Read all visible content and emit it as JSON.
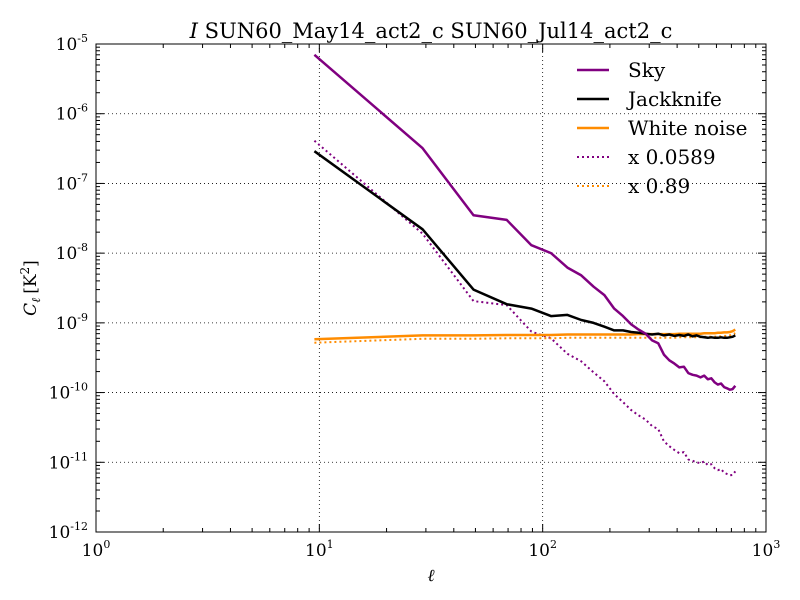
{
  "chart_data": {
    "type": "line",
    "title": "I SUN60_May14_act2_c SUN60_Jul14_act2_c",
    "title_italic_part": "I",
    "title_rest": " SUN60_May14_act2_c SUN60_Jul14_act2_c",
    "xlabel": "ℓ",
    "ylabel": "C_ℓ [K²]",
    "ylabel_main": "C",
    "ylabel_sub": "ℓ",
    "ylabel_unit": "[K",
    "ylabel_unit_exp": "2",
    "ylabel_unit_close": "]",
    "xscale": "log",
    "yscale": "log",
    "xlim": [
      1,
      1000
    ],
    "ylim": [
      1e-12,
      1e-05
    ],
    "grid": true,
    "legend_position": "top-right",
    "x_ticks": [
      {
        "value": 1,
        "base": "10",
        "exp": "0"
      },
      {
        "value": 10,
        "base": "10",
        "exp": "1"
      },
      {
        "value": 100,
        "base": "10",
        "exp": "2"
      },
      {
        "value": 1000,
        "base": "10",
        "exp": "3"
      }
    ],
    "y_ticks": [
      {
        "value": 1e-12,
        "base": "10",
        "exp": "-12"
      },
      {
        "value": 1e-11,
        "base": "10",
        "exp": "-11"
      },
      {
        "value": 1e-10,
        "base": "10",
        "exp": "-10"
      },
      {
        "value": 1e-09,
        "base": "10",
        "exp": "-9"
      },
      {
        "value": 1e-08,
        "base": "10",
        "exp": "-8"
      },
      {
        "value": 1e-07,
        "base": "10",
        "exp": "-7"
      },
      {
        "value": 1e-06,
        "base": "10",
        "exp": "-6"
      },
      {
        "value": 1e-05,
        "base": "10",
        "exp": "-5"
      }
    ],
    "series": [
      {
        "name": "Sky",
        "color": "#800080",
        "style": "solid",
        "points": [
          [
            9.5,
            7e-06
          ],
          [
            29,
            3.2e-07
          ],
          [
            49,
            3.5e-08
          ],
          [
            69,
            3e-08
          ],
          [
            89,
            1.3e-08
          ],
          [
            109,
            1e-08
          ],
          [
            129,
            6.2e-09
          ],
          [
            149,
            4.8e-09
          ],
          [
            169,
            3.3e-09
          ],
          [
            189,
            2.5e-09
          ],
          [
            209,
            1.6e-09
          ],
          [
            229,
            1.25e-09
          ],
          [
            249,
            9.5e-10
          ],
          [
            269,
            8e-10
          ],
          [
            289,
            7e-10
          ],
          [
            309,
            5.6e-10
          ],
          [
            329,
            5.1e-10
          ],
          [
            349,
            3.5e-10
          ],
          [
            369,
            2.9e-10
          ],
          [
            389,
            2.6e-10
          ],
          [
            409,
            2.3e-10
          ],
          [
            429,
            2.35e-10
          ],
          [
            449,
            1.9e-10
          ],
          [
            469,
            1.8e-10
          ],
          [
            489,
            1.75e-10
          ],
          [
            509,
            1.65e-10
          ],
          [
            529,
            1.75e-10
          ],
          [
            549,
            1.55e-10
          ],
          [
            569,
            1.6e-10
          ],
          [
            589,
            1.4e-10
          ],
          [
            609,
            1.3e-10
          ],
          [
            629,
            1.35e-10
          ],
          [
            649,
            1.2e-10
          ],
          [
            669,
            1.15e-10
          ],
          [
            689,
            1.1e-10
          ],
          [
            709,
            1.12e-10
          ],
          [
            729,
            1.25e-10
          ]
        ]
      },
      {
        "name": "Jackknife",
        "color": "#000000",
        "style": "solid",
        "points": [
          [
            9.5,
            2.9e-07
          ],
          [
            29,
            2.2e-08
          ],
          [
            49,
            3e-09
          ],
          [
            69,
            1.85e-09
          ],
          [
            89,
            1.6e-09
          ],
          [
            109,
            1.25e-09
          ],
          [
            129,
            1.3e-09
          ],
          [
            149,
            1.1e-09
          ],
          [
            169,
            1e-09
          ],
          [
            189,
            8.8e-10
          ],
          [
            209,
            7.8e-10
          ],
          [
            229,
            7.8e-10
          ],
          [
            249,
            7.4e-10
          ],
          [
            269,
            7.2e-10
          ],
          [
            289,
            7e-10
          ],
          [
            309,
            6.8e-10
          ],
          [
            329,
            7e-10
          ],
          [
            349,
            6.6e-10
          ],
          [
            369,
            6.8e-10
          ],
          [
            389,
            6.5e-10
          ],
          [
            409,
            6.7e-10
          ],
          [
            429,
            6.5e-10
          ],
          [
            449,
            6.8e-10
          ],
          [
            469,
            6.4e-10
          ],
          [
            489,
            6.6e-10
          ],
          [
            509,
            6.3e-10
          ],
          [
            529,
            6.2e-10
          ],
          [
            549,
            6.1e-10
          ],
          [
            569,
            6.2e-10
          ],
          [
            589,
            6.1e-10
          ],
          [
            609,
            6.1e-10
          ],
          [
            629,
            6.2e-10
          ],
          [
            649,
            6.1e-10
          ],
          [
            669,
            6.1e-10
          ],
          [
            689,
            6.2e-10
          ],
          [
            709,
            6.3e-10
          ],
          [
            729,
            6.6e-10
          ]
        ]
      },
      {
        "name": "White noise",
        "color": "#FF8C00",
        "style": "solid",
        "points": [
          [
            9.5,
            5.8e-10
          ],
          [
            29,
            6.6e-10
          ],
          [
            49,
            6.6e-10
          ],
          [
            69,
            6.7e-10
          ],
          [
            89,
            6.7e-10
          ],
          [
            109,
            6.7e-10
          ],
          [
            129,
            6.8e-10
          ],
          [
            149,
            6.8e-10
          ],
          [
            169,
            6.8e-10
          ],
          [
            189,
            6.8e-10
          ],
          [
            209,
            6.8e-10
          ],
          [
            229,
            6.8e-10
          ],
          [
            249,
            6.8e-10
          ],
          [
            269,
            6.9e-10
          ],
          [
            289,
            6.9e-10
          ],
          [
            309,
            6.9e-10
          ],
          [
            329,
            6.9e-10
          ],
          [
            349,
            6.9e-10
          ],
          [
            369,
            6.9e-10
          ],
          [
            389,
            6.9e-10
          ],
          [
            409,
            7e-10
          ],
          [
            429,
            7e-10
          ],
          [
            449,
            7e-10
          ],
          [
            469,
            7e-10
          ],
          [
            489,
            7e-10
          ],
          [
            509,
            7e-10
          ],
          [
            529,
            7.1e-10
          ],
          [
            549,
            7.1e-10
          ],
          [
            569,
            7.1e-10
          ],
          [
            589,
            7.1e-10
          ],
          [
            609,
            7.2e-10
          ],
          [
            629,
            7.2e-10
          ],
          [
            649,
            7.3e-10
          ],
          [
            669,
            7.3e-10
          ],
          [
            689,
            7.4e-10
          ],
          [
            709,
            7.6e-10
          ],
          [
            729,
            8e-10
          ]
        ]
      },
      {
        "name": "x 0.0589",
        "color": "#800080",
        "style": "dotted",
        "points": [
          [
            9.5,
            4.1e-07
          ],
          [
            29,
            1.9e-08
          ],
          [
            49,
            2.05e-09
          ],
          [
            69,
            1.8e-09
          ],
          [
            89,
            7.5e-10
          ],
          [
            109,
            6e-10
          ],
          [
            129,
            3.6e-10
          ],
          [
            149,
            2.8e-10
          ],
          [
            169,
            1.95e-10
          ],
          [
            189,
            1.45e-10
          ],
          [
            209,
            9.5e-11
          ],
          [
            229,
            7.3e-11
          ],
          [
            249,
            5.6e-11
          ],
          [
            269,
            4.7e-11
          ],
          [
            289,
            4.1e-11
          ],
          [
            309,
            3.3e-11
          ],
          [
            329,
            3e-11
          ],
          [
            349,
            2e-11
          ],
          [
            369,
            1.7e-11
          ],
          [
            389,
            1.5e-11
          ],
          [
            409,
            1.35e-11
          ],
          [
            429,
            1.4e-11
          ],
          [
            449,
            1.1e-11
          ],
          [
            469,
            1.05e-11
          ],
          [
            489,
            1e-11
          ],
          [
            509,
            9.7e-12
          ],
          [
            529,
            1.03e-11
          ],
          [
            549,
            9.1e-12
          ],
          [
            569,
            9.4e-12
          ],
          [
            589,
            8.2e-12
          ],
          [
            609,
            7.7e-12
          ],
          [
            629,
            8e-12
          ],
          [
            649,
            7.1e-12
          ],
          [
            669,
            6.8e-12
          ],
          [
            689,
            6.5e-12
          ],
          [
            709,
            6.6e-12
          ],
          [
            729,
            7.4e-12
          ]
        ]
      },
      {
        "name": "x 0.89",
        "color": "#FF8C00",
        "style": "dotted",
        "points": [
          [
            9.5,
            5.2e-10
          ],
          [
            29,
            5.9e-10
          ],
          [
            49,
            5.9e-10
          ],
          [
            69,
            6e-10
          ],
          [
            89,
            6e-10
          ],
          [
            109,
            6e-10
          ],
          [
            129,
            6.1e-10
          ],
          [
            149,
            6.1e-10
          ],
          [
            169,
            6.1e-10
          ],
          [
            189,
            6.1e-10
          ],
          [
            209,
            6.1e-10
          ],
          [
            229,
            6.1e-10
          ],
          [
            249,
            6.1e-10
          ],
          [
            269,
            6.1e-10
          ],
          [
            289,
            6.1e-10
          ],
          [
            309,
            6.1e-10
          ],
          [
            329,
            6.1e-10
          ],
          [
            349,
            6.1e-10
          ],
          [
            369,
            6.1e-10
          ],
          [
            389,
            6.1e-10
          ],
          [
            409,
            6.2e-10
          ],
          [
            429,
            6.2e-10
          ],
          [
            449,
            6.2e-10
          ],
          [
            469,
            6.2e-10
          ],
          [
            489,
            6.2e-10
          ],
          [
            509,
            6.2e-10
          ],
          [
            529,
            6.3e-10
          ],
          [
            549,
            6.3e-10
          ],
          [
            569,
            6.3e-10
          ],
          [
            589,
            6.3e-10
          ],
          [
            609,
            6.4e-10
          ],
          [
            629,
            6.4e-10
          ],
          [
            649,
            6.5e-10
          ],
          [
            669,
            6.5e-10
          ],
          [
            689,
            6.6e-10
          ],
          [
            709,
            6.8e-10
          ],
          [
            729,
            7.1e-10
          ]
        ]
      }
    ]
  }
}
